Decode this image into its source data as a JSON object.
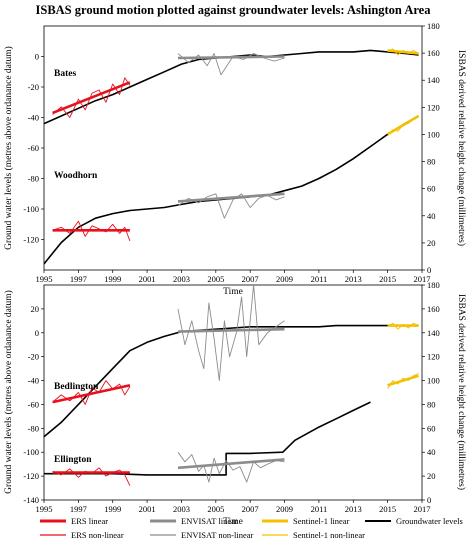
{
  "title": "ISBAS ground motion plotted against groundwater levels: Ashington Area",
  "colors": {
    "ers": "#e8101c",
    "envisat": "#8c8c8c",
    "sentinel": "#f5c000",
    "groundwater": "#000000"
  },
  "chart_data": [
    {
      "type": "line",
      "panel": "upper",
      "sites": [
        "Bates",
        "Woodhorn"
      ],
      "xlabel": "Time",
      "ylabel": "Ground water levels (metres above ordanance datum)",
      "y2label": "ISBAS derived relative height change (millimetres)",
      "xlim": [
        1995,
        2017
      ],
      "ylim": [
        -140,
        20
      ],
      "y2lim": [
        0,
        180
      ],
      "x_ticks": [
        "1995",
        "1997",
        "1999",
        "2001",
        "2003",
        "2005",
        "2007",
        "2009",
        "2011",
        "2013",
        "2015",
        "2017"
      ],
      "y_ticks": [
        "0",
        "-20",
        "-40",
        "-60",
        "-80",
        "-100",
        "-120"
      ],
      "y2_ticks": [
        "0",
        "20",
        "40",
        "60",
        "80",
        "100",
        "120",
        "140",
        "160",
        "180"
      ],
      "series": [
        {
          "name": "Groundwater levels",
          "site": "Bates",
          "style": "groundwater",
          "x": [
            1995,
            1996,
            1997,
            1998,
            1999,
            2000,
            2001,
            2002,
            2003,
            2004,
            2005,
            2006,
            2007,
            2008,
            2009,
            2010,
            2011,
            2012,
            2013,
            2014,
            2015,
            2016,
            2016.8
          ],
          "y": [
            -44,
            -39,
            -34,
            -29,
            -25,
            -20,
            -15,
            -10,
            -5,
            -2,
            -1,
            0,
            1,
            0,
            1,
            2,
            3,
            3,
            3,
            4,
            3,
            2,
            1
          ]
        },
        {
          "name": "Groundwater levels",
          "site": "Woodhorn",
          "style": "groundwater",
          "x": [
            1995,
            1996,
            1997,
            1998,
            1999,
            2000,
            2001,
            2002,
            2003,
            2004,
            2005,
            2006,
            2007,
            2008,
            2009,
            2010,
            2011,
            2012,
            2013,
            2014,
            2015,
            2016,
            2016.8
          ],
          "y": [
            -136,
            -122,
            -112,
            -106,
            -103,
            -101,
            -100,
            -99,
            -97,
            -95,
            -94,
            -93,
            -92,
            -91,
            -88,
            -85,
            -80,
            -74,
            -67,
            -59,
            -51,
            -44,
            -39
          ]
        },
        {
          "name": "ERS linear",
          "site": "Bates",
          "style": "ers-linear",
          "x": [
            1995.5,
            2000
          ],
          "y": [
            -37,
            -17
          ]
        },
        {
          "name": "ERS non-linear",
          "site": "Bates",
          "style": "ers-nonlinear",
          "x": [
            1995.5,
            1996,
            1996.5,
            1997,
            1997.4,
            1997.8,
            1998.2,
            1998.6,
            1999,
            1999.4,
            1999.7,
            2000
          ],
          "y": [
            -38,
            -33,
            -40,
            -28,
            -35,
            -24,
            -22,
            -30,
            -18,
            -25,
            -14,
            -19
          ]
        },
        {
          "name": "ERS linear",
          "site": "Woodhorn",
          "style": "ers-linear",
          "x": [
            1995.5,
            2000
          ],
          "y": [
            -114,
            -114
          ]
        },
        {
          "name": "ERS non-linear",
          "site": "Woodhorn",
          "style": "ers-nonlinear",
          "x": [
            1995.5,
            1996,
            1996.5,
            1997,
            1997.4,
            1997.8,
            1998.2,
            1998.6,
            1999,
            1999.4,
            1999.7,
            2000
          ],
          "y": [
            -114,
            -112,
            -116,
            -108,
            -118,
            -111,
            -113,
            -115,
            -110,
            -116,
            -112,
            -121
          ]
        },
        {
          "name": "ENVISAT linear",
          "site": "Bates",
          "style": "envisat-linear",
          "x": [
            2002.8,
            2009
          ],
          "y": [
            -1,
            0
          ]
        },
        {
          "name": "ENVISAT non-linear",
          "site": "Bates",
          "style": "envisat-nonlinear",
          "x": [
            2002.8,
            2003.4,
            2004,
            2004.5,
            2004.9,
            2005.3,
            2006,
            2006.6,
            2007.2,
            2007.8,
            2008.4,
            2009
          ],
          "y": [
            2,
            -4,
            1,
            -6,
            2,
            -12,
            0,
            -2,
            2,
            -1,
            -3,
            -1
          ]
        },
        {
          "name": "ENVISAT linear",
          "site": "Woodhorn",
          "style": "envisat-linear",
          "x": [
            2002.8,
            2009
          ],
          "y": [
            -95,
            -90
          ]
        },
        {
          "name": "ENVISAT non-linear",
          "site": "Woodhorn",
          "style": "envisat-nonlinear",
          "x": [
            2002.8,
            2003.4,
            2004,
            2004.5,
            2005,
            2005.5,
            2006,
            2006.5,
            2007,
            2007.5,
            2008,
            2008.5,
            2009
          ],
          "y": [
            -98,
            -93,
            -96,
            -92,
            -90,
            -106,
            -94,
            -90,
            -99,
            -93,
            -91,
            -94,
            -92
          ]
        },
        {
          "name": "Sentinel-1 linear",
          "site": "Bates",
          "style": "sentinel-linear",
          "x": [
            2015,
            2016.8
          ],
          "y": [
            4,
            2
          ]
        },
        {
          "name": "Sentinel-1 non-linear",
          "site": "Bates",
          "style": "sentinel-nonlinear",
          "x": [
            2015,
            2015.3,
            2015.6,
            2015.9,
            2016.2,
            2016.5,
            2016.8
          ],
          "y": [
            3,
            5,
            1,
            4,
            2,
            4,
            2
          ]
        },
        {
          "name": "Sentinel-1 linear",
          "site": "Woodhorn",
          "style": "sentinel-linear",
          "x": [
            2015,
            2016.8
          ],
          "y": [
            -51,
            -39
          ]
        },
        {
          "name": "Sentinel-1 non-linear",
          "site": "Woodhorn",
          "style": "sentinel-nonlinear",
          "x": [
            2015,
            2015.3,
            2015.6,
            2015.9,
            2016.2,
            2016.5,
            2016.8
          ],
          "y": [
            -52,
            -48,
            -49,
            -45,
            -44,
            -41,
            -39
          ]
        }
      ]
    },
    {
      "type": "line",
      "panel": "lower",
      "sites": [
        "Bedlington",
        "Ellington"
      ],
      "xlabel": "Time",
      "ylabel": "Ground water levels (metres above ordanance datum)",
      "y2label": "ISBAS derived relative height change (millimetres)",
      "xlim": [
        1995,
        2017
      ],
      "ylim": [
        -140,
        40
      ],
      "y2lim": [
        0,
        180
      ],
      "x_ticks": [
        "1995",
        "1997",
        "1999",
        "2001",
        "2003",
        "2005",
        "2007",
        "2009",
        "2011",
        "2013",
        "2015",
        "2017"
      ],
      "y_ticks": [
        "20",
        "0",
        "-20",
        "-40",
        "-60",
        "-80",
        "-100",
        "-120",
        "-140"
      ],
      "y2_ticks": [
        "0",
        "20",
        "40",
        "60",
        "80",
        "100",
        "120",
        "140",
        "160",
        "180"
      ],
      "series": [
        {
          "name": "Groundwater levels",
          "site": "Bedlington",
          "style": "groundwater",
          "x": [
            1995,
            1996,
            1997,
            1998,
            1999,
            2000,
            2001,
            2002,
            2003,
            2004,
            2005,
            2006,
            2007,
            2008,
            2009,
            2010,
            2011,
            2012,
            2013,
            2014,
            2015,
            2016,
            2016.8
          ],
          "y": [
            -87,
            -75,
            -60,
            -45,
            -30,
            -15,
            -8,
            -3,
            1,
            2,
            3,
            4,
            5,
            5,
            5,
            5,
            5,
            6,
            6,
            6,
            6,
            6,
            6
          ]
        },
        {
          "name": "Groundwater levels",
          "site": "Ellington",
          "style": "groundwater",
          "x": [
            1995,
            1997,
            1999,
            2001,
            2003,
            2005,
            2005.6,
            2005.6,
            2007,
            2008.9,
            2009.6,
            2011,
            2012,
            2013,
            2014
          ],
          "y": [
            -118,
            -118,
            -118,
            -119,
            -119,
            -119,
            -119,
            -101,
            -101,
            -100,
            -90,
            -79,
            -72,
            -65,
            -58
          ]
        },
        {
          "name": "ERS linear",
          "site": "Bedlington",
          "style": "ers-linear",
          "x": [
            1995.5,
            2000
          ],
          "y": [
            -58,
            -44
          ]
        },
        {
          "name": "ERS non-linear",
          "site": "Bedlington",
          "style": "ers-nonlinear",
          "x": [
            1995.5,
            1996,
            1996.5,
            1997,
            1997.4,
            1997.8,
            1998.2,
            1998.6,
            1999,
            1999.4,
            1999.7,
            2000
          ],
          "y": [
            -58,
            -52,
            -57,
            -50,
            -60,
            -46,
            -50,
            -40,
            -47,
            -43,
            -52,
            -45
          ]
        },
        {
          "name": "ERS linear",
          "site": "Ellington",
          "style": "ers-linear",
          "x": [
            1995.5,
            2000
          ],
          "y": [
            -117,
            -117
          ]
        },
        {
          "name": "ERS non-linear",
          "site": "Ellington",
          "style": "ers-nonlinear",
          "x": [
            1995.5,
            1996,
            1996.5,
            1997,
            1997.4,
            1997.8,
            1998.2,
            1998.6,
            1999,
            1999.4,
            1999.7,
            2000
          ],
          "y": [
            -116,
            -119,
            -114,
            -121,
            -116,
            -118,
            -113,
            -120,
            -117,
            -115,
            -119,
            -128
          ]
        },
        {
          "name": "ENVISAT linear",
          "site": "Bedlington",
          "style": "envisat-linear",
          "x": [
            2002.8,
            2009
          ],
          "y": [
            1,
            3
          ]
        },
        {
          "name": "ENVISAT non-linear",
          "site": "Bedlington",
          "style": "envisat-nonlinear",
          "x": [
            2002.8,
            2003.2,
            2003.6,
            2004,
            2004.3,
            2004.6,
            2004.9,
            2005.2,
            2005.5,
            2005.8,
            2006.2,
            2006.5,
            2006.8,
            2007.2,
            2007.5,
            2008,
            2008.5,
            2009
          ],
          "y": [
            20,
            -10,
            10,
            -15,
            -30,
            25,
            -5,
            -40,
            10,
            -20,
            0,
            30,
            -20,
            40,
            -10,
            0,
            5,
            10
          ]
        },
        {
          "name": "ENVISAT linear",
          "site": "Ellington",
          "style": "envisat-linear",
          "x": [
            2002.8,
            2009
          ],
          "y": [
            -113,
            -106
          ]
        },
        {
          "name": "ENVISAT non-linear",
          "site": "Ellington",
          "style": "envisat-nonlinear",
          "x": [
            2002.8,
            2003.2,
            2003.6,
            2004,
            2004.3,
            2004.6,
            2004.9,
            2005.2,
            2005.6,
            2006,
            2006.4,
            2006.8,
            2007.2,
            2007.6,
            2008,
            2008.5,
            2009
          ],
          "y": [
            -100,
            -108,
            -102,
            -116,
            -111,
            -125,
            -105,
            -118,
            -107,
            -115,
            -112,
            -125,
            -108,
            -113,
            -110,
            -107,
            -108
          ]
        },
        {
          "name": "Sentinel-1 linear",
          "site": "Bedlington",
          "style": "sentinel-linear",
          "x": [
            2015,
            2016.8
          ],
          "y": [
            6,
            6
          ]
        },
        {
          "name": "Sentinel-1 non-linear",
          "site": "Bedlington",
          "style": "sentinel-nonlinear",
          "x": [
            2015,
            2015.3,
            2015.6,
            2015.9,
            2016.2,
            2016.5,
            2016.8
          ],
          "y": [
            5,
            8,
            3,
            7,
            4,
            8,
            6
          ]
        },
        {
          "name": "Sentinel-1 linear",
          "site": "Bedlington",
          "style": "sentinel-linear",
          "x": [
            2015,
            2016.8
          ],
          "y": [
            -44,
            -36
          ]
        },
        {
          "name": "Sentinel-1 non-linear",
          "site": "Bedlington",
          "style": "sentinel-nonlinear",
          "x": [
            2015,
            2015.3,
            2015.6,
            2015.9,
            2016.2,
            2016.5,
            2016.8
          ],
          "y": [
            -47,
            -40,
            -43,
            -38,
            -40,
            -36,
            -34
          ]
        }
      ]
    }
  ],
  "legend": [
    {
      "label": "ERS linear",
      "style": "ers-linear"
    },
    {
      "label": "ENVISAT linear",
      "style": "envisat-linear"
    },
    {
      "label": "Sentinel-1 linear",
      "style": "sentinel-linear"
    },
    {
      "label": "Groundwater levels",
      "style": "groundwater"
    },
    {
      "label": "ERS non-linear",
      "style": "ers-nonlinear"
    },
    {
      "label": "ENVISAT non-linear",
      "style": "envisat-nonlinear"
    },
    {
      "label": "Sentinel-1 non-linear",
      "style": "sentinel-nonlinear"
    }
  ]
}
